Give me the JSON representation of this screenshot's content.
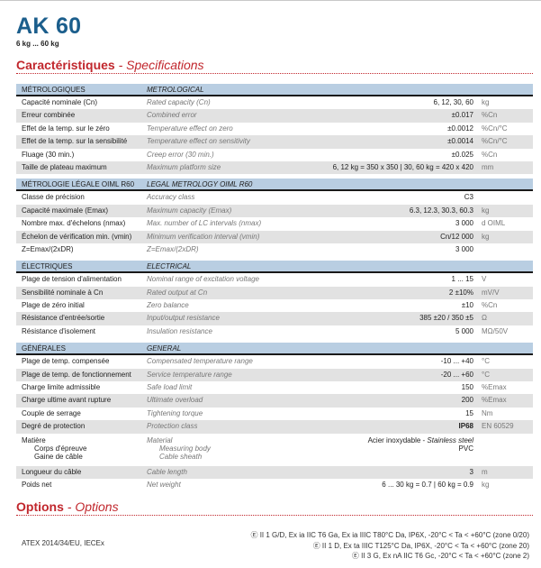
{
  "product": {
    "title": "AK 60",
    "range": "6 kg ... 60 kg"
  },
  "specs_heading": {
    "fr": "Caractéristiques",
    "sep": " - ",
    "en": "Specifications"
  },
  "groups": [
    {
      "fr": "MÉTROLOGIQUES",
      "en": "METROLOGICAL",
      "rows": [
        {
          "fr": "Capacité nominale (Cn)",
          "en": "Rated capacity (Cn)",
          "value": "6, 12, 30, 60",
          "unit": "kg"
        },
        {
          "fr": "Erreur combinée",
          "en": "Combined error",
          "value": "±0.017",
          "unit": "%Cn"
        },
        {
          "fr": "Effet de la temp. sur le zéro",
          "en": "Temperature effect on zero",
          "value": "±0.0012",
          "unit": "%Cn/°C"
        },
        {
          "fr": "Effet de la temp. sur la sensibilité",
          "en": "Temperature effect on sensitivity",
          "value": "±0.0014",
          "unit": "%Cn/°C"
        },
        {
          "fr": "Fluage (30 min.)",
          "en": "Creep error (30 min.)",
          "value": "±0.025",
          "unit": "%Cn"
        },
        {
          "fr": "Taille de plateau maximum",
          "en": "Maximum platform size",
          "value": "6, 12 kg = 350 x 350 | 30, 60 kg = 420 x 420",
          "unit": "mm"
        }
      ]
    },
    {
      "fr": "MÉTROLOGIE LÉGALE OIML R60",
      "en": "LEGAL METROLOGY OIML R60",
      "rows": [
        {
          "fr": "Classe de précision",
          "en": "Accuracy class",
          "value": "C3",
          "unit": ""
        },
        {
          "fr": "Capacité maximale (Emax)",
          "en": "Maximum capacity (Emax)",
          "value": "6.3, 12.3, 30.3, 60.3",
          "unit": "kg"
        },
        {
          "fr": "Nombre max. d'échelons (nmax)",
          "en": "Max. number of LC intervals (nmax)",
          "value": "3 000",
          "unit": "d OIML"
        },
        {
          "fr": "Échelon de vérification min. (vmin)",
          "en": "Minimum verification interval (vmin)",
          "value": "Cn/12 000",
          "unit": "kg"
        },
        {
          "fr": "Z=Emax/(2xDR)",
          "en": "Z=Emax/(2xDR)",
          "value": "3 000",
          "unit": ""
        }
      ]
    },
    {
      "fr": "ÉLECTRIQUES",
      "en": "ELECTRICAL",
      "rows": [
        {
          "fr": "Plage de tension d'alimentation",
          "en": "Nominal range of excitation voltage",
          "value": "1 ... 15",
          "unit": "V"
        },
        {
          "fr": "Sensibilité nominale à Cn",
          "en": "Rated output at Cn",
          "value": "2 ±10%",
          "unit": "mV/V"
        },
        {
          "fr": "Plage de zéro initial",
          "en": "Zero balance",
          "value": "±10",
          "unit": "%Cn"
        },
        {
          "fr": "Résistance d'entrée/sortie",
          "en": "Input/output resistance",
          "value": "385 ±20 / 350 ±5",
          "unit": "Ω"
        },
        {
          "fr": "Résistance d'isolement",
          "en": "Insulation resistance",
          "value": "5 000",
          "unit": "MΩ/50V"
        }
      ]
    },
    {
      "fr": "GÉNÉRALES",
      "en": "GENERAL",
      "rows": [
        {
          "fr": "Plage de temp. compensée",
          "en": "Compensated temperature range",
          "value": "-10 ... +40",
          "unit": "°C"
        },
        {
          "fr": "Plage de temp. de fonctionnement",
          "en": "Service temperature range",
          "value": "-20 ... +60",
          "unit": "°C"
        },
        {
          "fr": "Charge limite admissible",
          "en": "Safe load limit",
          "value": "150",
          "unit": "%Emax"
        },
        {
          "fr": "Charge ultime avant rupture",
          "en": "Ultimate overload",
          "value": "200",
          "unit": "%Emax"
        },
        {
          "fr": "Couple de serrage",
          "en": "Tightening torque",
          "value": "15",
          "unit": "Nm"
        },
        {
          "fr": "Degré de protection",
          "en": "Protection class",
          "value": "IP68",
          "unit": "EN 60529",
          "bold": true
        },
        {
          "fr": "Matière",
          "en": "Material",
          "value": "",
          "unit": "",
          "sub": [
            {
              "fr": "Corps d'épreuve",
              "en": "Measuring body",
              "value": "Acier inoxydable - ",
              "value_en": "Stainless steel"
            },
            {
              "fr": "Gaine de câble",
              "en": "Cable sheath",
              "value": "PVC"
            }
          ]
        },
        {
          "fr": "Longueur du câble",
          "en": "Cable length",
          "value": "3",
          "unit": "m"
        },
        {
          "fr": "Poids net",
          "en": "Net weight",
          "value": "6 ... 30 kg = 0.7 | 60 kg = 0.9",
          "unit": "kg"
        }
      ]
    }
  ],
  "options_heading": {
    "fr": "Options",
    "sep": " - ",
    "en": "Options"
  },
  "options": {
    "atex_label": "ATEX 2014/34/EU, IECEx",
    "atex_lines": [
      "Ⓔ II 1 G/D, Ex ia IIC T6 Ga, Ex ia IIIC T80°C Da, IP6X, -20°C < Ta < +60°C (zone 0/20)",
      "Ⓔ II 1 D, Ex ta IIIC T125°C Da, IP6X, -20°C < Ta < +60°C (zone 20)",
      "Ⓔ II 3 G, Ex nA IIC T6 Gc, -20°C < Ta < +60°C (zone 2)"
    ]
  },
  "colors": {
    "title": "#1b5e8c",
    "heading_red": "#c1272d",
    "group_header": "#b9cee2",
    "row_alt": "#e2e2e2"
  }
}
